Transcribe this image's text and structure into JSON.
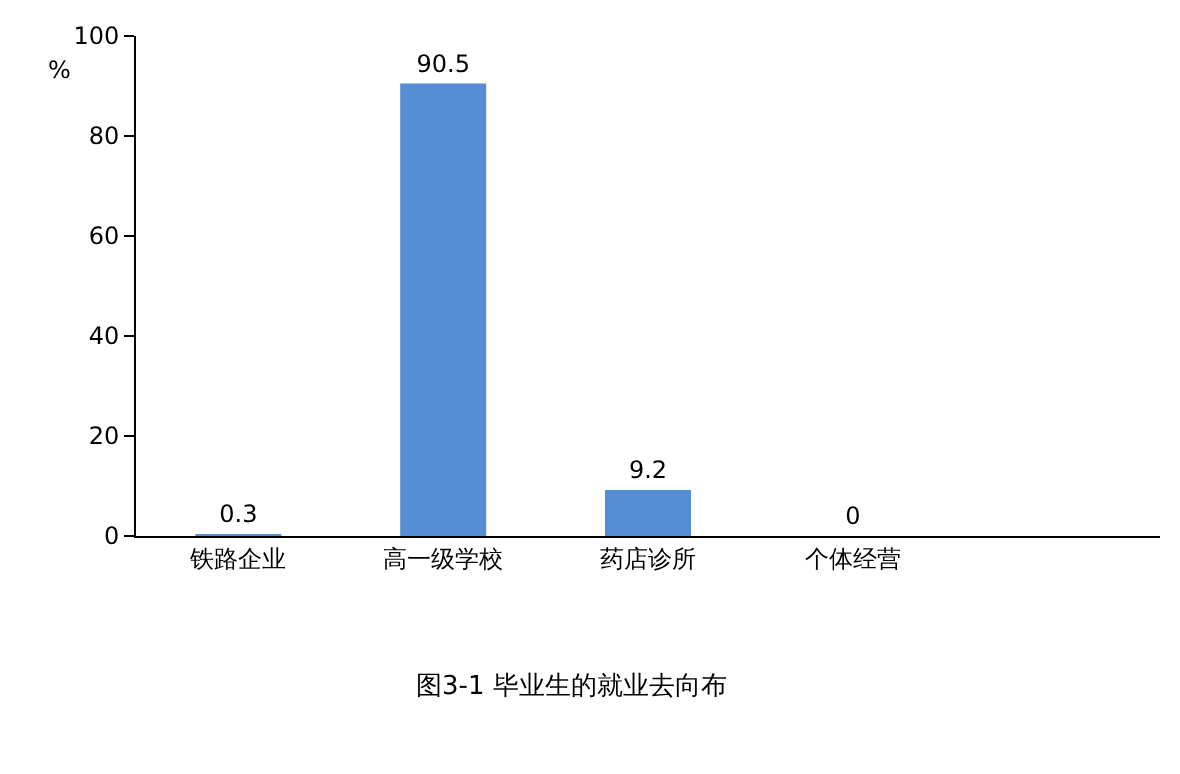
{
  "chart_data": {
    "type": "bar",
    "title": "图3-1 毕业生的就业去向布",
    "ylabel": "%",
    "categories": [
      "铁路企业",
      "高一级学校",
      "药店诊所",
      "个体经营"
    ],
    "values": [
      0.3,
      90.5,
      9.2,
      0
    ],
    "color": "#558ed5",
    "ylim": [
      0,
      100
    ],
    "yticks": [
      0,
      20,
      40,
      60,
      80,
      100
    ],
    "grid": false,
    "data_labels": true
  }
}
